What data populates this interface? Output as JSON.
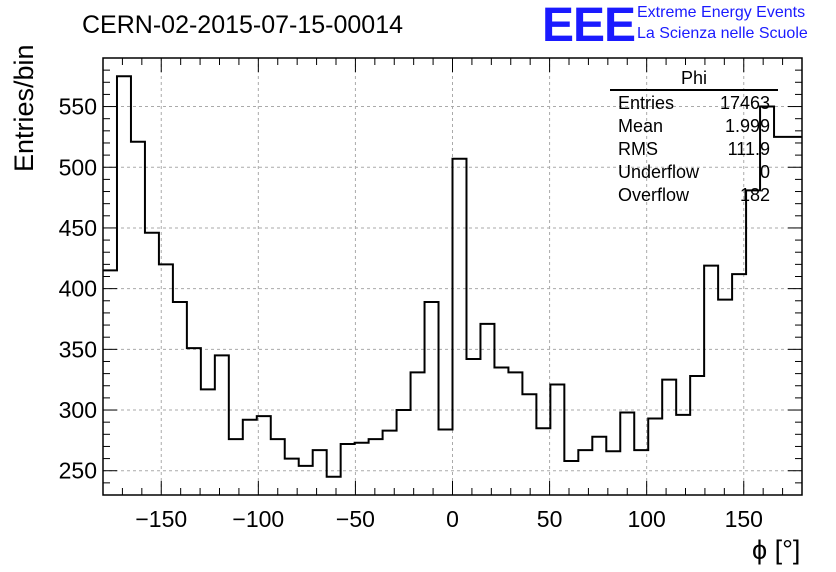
{
  "plot_title": "CERN-02-2015-07-15-00014",
  "logo": {
    "mark": "EEE",
    "line1": "Extreme Energy Events",
    "line2": "La Scienza nelle Scuole",
    "color": "#1a1aff"
  },
  "stats_box": {
    "title": "Phi",
    "rows": [
      {
        "key": "Entries",
        "value": "17463"
      },
      {
        "key": "Mean",
        "value": "1.999"
      },
      {
        "key": "RMS",
        "value": "111.9"
      },
      {
        "key": "Underflow",
        "value": "0"
      },
      {
        "key": "Overflow",
        "value": "182"
      }
    ]
  },
  "chart_data": {
    "type": "histogram-step",
    "title": "CERN-02-2015-07-15-00014",
    "xlabel": "ϕ [°]",
    "ylabel": "Entries/bin",
    "xlim": [
      -180,
      180
    ],
    "ylim": [
      230,
      590
    ],
    "bin_width": 7.2,
    "x_ticks": [
      -150,
      -100,
      -50,
      0,
      50,
      100,
      150
    ],
    "x_tick_labels": [
      "−150",
      "−100",
      "−50",
      "0",
      "50",
      "100",
      "150"
    ],
    "y_ticks": [
      250,
      300,
      350,
      400,
      450,
      500,
      550
    ],
    "y_tick_labels": [
      "250",
      "300",
      "350",
      "400",
      "450",
      "500",
      "550"
    ],
    "grid": true,
    "line_color": "#000000",
    "bin_edges": [
      -180,
      -172.8,
      -165.6,
      -158.4,
      -151.2,
      -144,
      -136.8,
      -129.6,
      -122.4,
      -115.2,
      -108,
      -100.8,
      -93.6,
      -86.4,
      -79.2,
      -72,
      -64.8,
      -57.6,
      -50.4,
      -43.2,
      -36,
      -28.8,
      -21.6,
      -14.4,
      -7.2,
      0,
      7.2,
      14.4,
      21.6,
      28.8,
      36,
      43.2,
      50.4,
      57.6,
      64.8,
      72,
      79.2,
      86.4,
      93.6,
      100.8,
      108,
      115.2,
      122.4,
      129.6,
      136.8,
      144,
      151.2,
      158.4,
      165.6,
      172.8,
      180
    ],
    "values": [
      415,
      575,
      521,
      446,
      420,
      389,
      351,
      317,
      345,
      276,
      292,
      295,
      276,
      260,
      254,
      267,
      245,
      272,
      273,
      276,
      283,
      300,
      331,
      389,
      284,
      507,
      342,
      371,
      335,
      331,
      313,
      285,
      321,
      258,
      267,
      278,
      266,
      298,
      267,
      293,
      325,
      296,
      328,
      419,
      391,
      412,
      481,
      550,
      525,
      525
    ]
  }
}
